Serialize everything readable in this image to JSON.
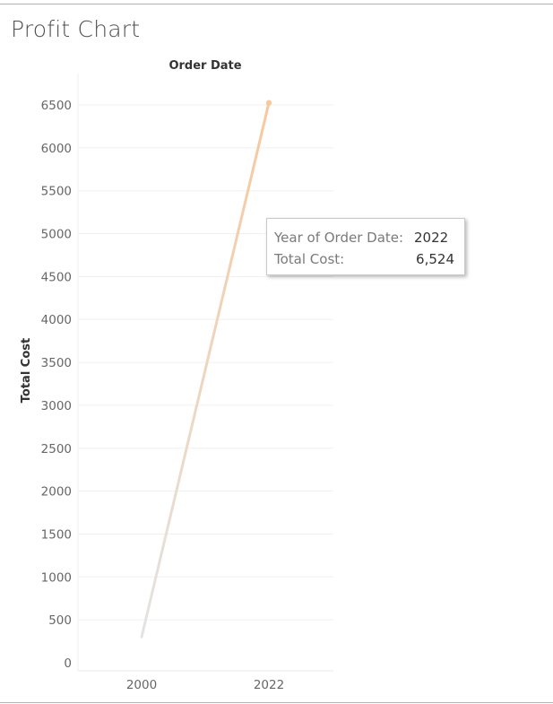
{
  "page": {
    "title": "Profit Chart"
  },
  "chart_data": {
    "type": "line",
    "title": "",
    "xlabel": "Order Date",
    "ylabel": "Total Cost",
    "x": [
      "2000",
      "2022"
    ],
    "series": [
      {
        "name": "",
        "values": [
          300,
          6524
        ]
      }
    ],
    "yticks": [
      0,
      500,
      1000,
      1500,
      2000,
      2500,
      3000,
      3500,
      4000,
      4500,
      5000,
      5500,
      6000,
      6500
    ],
    "ylim": [
      0,
      6500
    ],
    "grid": true,
    "colors": {
      "start": "#e3e3e3",
      "end": "#f8c89a",
      "highlight": "#f8c89a"
    },
    "highlighted_point": "2022"
  },
  "tooltip": {
    "row1_label": "Year of Order Date:",
    "row1_value": "2022",
    "row2_label": "Total Cost:",
    "row2_value": "6,524"
  }
}
